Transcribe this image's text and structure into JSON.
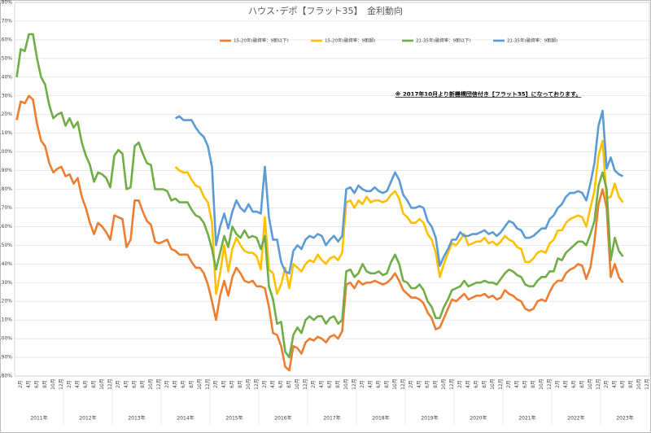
{
  "chart_data": {
    "type": "line",
    "title": "ハウス･デポ【フラット35】　金利動向",
    "annotation": "※ 2017年10月より新機構団信付き【フラット35】になっております。",
    "categories": [
      null,
      "2月",
      null,
      "4月",
      null,
      "6月",
      null,
      "8月",
      null,
      "10月",
      null,
      "12月",
      null,
      "2月",
      null,
      "4月",
      null,
      "6月",
      null,
      "8月",
      null,
      "10月",
      null,
      "12月",
      null,
      "2月",
      null,
      "4月",
      null,
      "6月",
      null,
      "8月",
      null,
      "10月",
      null,
      "12月",
      null,
      "2月",
      null,
      "4月",
      null,
      "6月",
      null,
      "8月",
      null,
      "10月",
      null,
      "12月",
      null,
      "2月",
      null,
      "4月",
      null,
      "6月",
      null,
      "8月",
      null,
      "10月",
      null,
      "12月",
      null,
      "2月",
      null,
      "4月",
      null,
      "6月",
      null,
      "8月",
      null,
      "10月",
      null,
      "12月",
      null,
      "2月",
      null,
      "4月",
      null,
      "6月",
      null,
      "8月",
      null,
      "10月",
      null,
      "12月",
      null,
      "2月",
      null,
      "4月",
      null,
      "6月",
      null,
      "8月",
      null,
      "10月",
      null,
      "12月",
      null,
      "2月",
      null,
      "4月",
      null,
      "6月",
      null,
      "8月",
      null,
      "10月",
      null,
      "12月",
      null,
      "2月",
      null,
      "4月",
      null,
      "6月",
      null,
      "8月",
      null,
      "10月",
      null,
      "12月",
      null,
      "2月",
      null,
      "4月",
      null,
      "6月",
      null,
      "8月",
      null,
      "10月",
      null,
      "12月",
      null,
      "2月",
      null,
      "4月",
      null,
      "6月",
      null,
      "8月",
      null,
      "10月",
      null,
      "12月",
      null,
      "2月",
      null,
      "4月",
      null,
      "6月",
      null,
      "8月",
      null,
      "10月",
      null,
      "12月"
    ],
    "x_groups": [
      "2011年",
      "2012年",
      "2013年",
      "2014年",
      "2015年",
      "2016年",
      "2017年",
      "2018年",
      "2019年",
      "2020年",
      "2021年",
      "2022年",
      "2023年"
    ],
    "ylim": [
      0.8,
      2.8
    ],
    "yticks": [
      {
        "value": 0.8,
        "label": "0.80%"
      },
      {
        "value": 0.9,
        "label": "0.90%"
      },
      {
        "value": 1.0,
        "label": "1.00%"
      },
      {
        "value": 1.1,
        "label": "1.10%"
      },
      {
        "value": 1.2,
        "label": "1.20%"
      },
      {
        "value": 1.3,
        "label": "1.30%"
      },
      {
        "value": 1.4,
        "label": "1.40%"
      },
      {
        "value": 1.5,
        "label": "1.50%"
      },
      {
        "value": 1.6,
        "label": "1.60%"
      },
      {
        "value": 1.7,
        "label": "1.70%"
      },
      {
        "value": 1.8,
        "label": "1.80%"
      },
      {
        "value": 1.9,
        "label": "1.90%"
      },
      {
        "value": 2.0,
        "label": "2.00%"
      },
      {
        "value": 2.1,
        "label": "2.10%"
      },
      {
        "value": 2.2,
        "label": "2.20%"
      },
      {
        "value": 2.3,
        "label": "2.30%"
      },
      {
        "value": 2.4,
        "label": "2.40%"
      },
      {
        "value": 2.5,
        "label": "2.50%"
      },
      {
        "value": 2.6,
        "label": "2.60%"
      },
      {
        "value": 2.7,
        "label": "2.70%"
      },
      {
        "value": 2.8,
        "label": "2.80%"
      }
    ],
    "grid": true,
    "series": [
      {
        "name": "15-20年(融資率：9割以下)",
        "color": "#ed7d31",
        "values": [
          2.17,
          2.27,
          2.26,
          2.3,
          2.28,
          2.15,
          2.06,
          2.03,
          1.94,
          1.89,
          1.91,
          1.92,
          1.87,
          1.88,
          1.83,
          1.86,
          1.76,
          1.7,
          1.62,
          1.56,
          1.62,
          1.6,
          1.57,
          1.53,
          1.66,
          1.65,
          1.64,
          1.49,
          1.53,
          1.74,
          1.74,
          1.68,
          1.63,
          1.61,
          1.52,
          1.51,
          1.52,
          1.53,
          1.48,
          1.47,
          1.45,
          1.45,
          1.45,
          1.41,
          1.38,
          1.38,
          1.35,
          1.29,
          1.2,
          1.1,
          1.23,
          1.31,
          1.23,
          1.33,
          1.38,
          1.35,
          1.31,
          1.3,
          1.31,
          1.28,
          1.28,
          1.27,
          1.17,
          1.03,
          1.02,
          0.96,
          0.85,
          0.83,
          0.96,
          0.95,
          0.92,
          0.98,
          1.0,
          0.99,
          1.01,
          1.0,
          0.98,
          1.01,
          1.02,
          1.0,
          1.04,
          1.29,
          1.3,
          1.27,
          1.31,
          1.29,
          1.3,
          1.3,
          1.31,
          1.3,
          1.29,
          1.3,
          1.32,
          1.35,
          1.31,
          1.26,
          1.24,
          1.22,
          1.22,
          1.21,
          1.19,
          1.14,
          1.11,
          1.05,
          1.06,
          1.11,
          1.16,
          1.21,
          1.2,
          1.22,
          1.24,
          1.21,
          1.22,
          1.23,
          1.23,
          1.24,
          1.22,
          1.23,
          1.21,
          1.22,
          1.26,
          1.24,
          1.23,
          1.21,
          1.2,
          1.16,
          1.15,
          1.16,
          1.2,
          1.21,
          1.2,
          1.25,
          1.29,
          1.31,
          1.31,
          1.35,
          1.37,
          1.38,
          1.4,
          1.39,
          1.32,
          1.38,
          1.52,
          1.72,
          1.8,
          1.7,
          1.33,
          1.4,
          1.33,
          1.3,
          null,
          null,
          null,
          null,
          null,
          null
        ]
      },
      {
        "name": "15-20年(融資率：9割超)",
        "color": "#ffc000",
        "values": [
          null,
          null,
          null,
          null,
          null,
          null,
          null,
          null,
          null,
          null,
          null,
          null,
          null,
          null,
          null,
          null,
          null,
          null,
          null,
          null,
          null,
          null,
          null,
          null,
          null,
          null,
          null,
          null,
          null,
          null,
          null,
          null,
          null,
          null,
          null,
          null,
          null,
          null,
          null,
          1.92,
          1.9,
          1.89,
          1.89,
          1.85,
          1.82,
          1.81,
          1.76,
          1.73,
          1.62,
          1.24,
          1.35,
          1.5,
          1.36,
          1.48,
          1.54,
          1.5,
          1.47,
          1.46,
          1.46,
          1.44,
          1.37,
          1.65,
          1.37,
          1.35,
          1.24,
          1.29,
          1.38,
          1.27,
          1.4,
          1.38,
          1.36,
          1.4,
          1.42,
          1.41,
          1.45,
          1.42,
          1.4,
          1.43,
          1.44,
          1.42,
          1.46,
          1.73,
          1.74,
          1.7,
          1.74,
          1.72,
          1.76,
          1.73,
          1.74,
          1.74,
          1.73,
          1.74,
          1.77,
          1.79,
          1.75,
          1.67,
          1.65,
          1.62,
          1.62,
          1.64,
          1.62,
          1.56,
          1.53,
          1.46,
          1.33,
          1.4,
          1.46,
          1.51,
          1.5,
          1.53,
          1.56,
          1.5,
          1.51,
          1.52,
          1.52,
          1.54,
          1.51,
          1.52,
          1.5,
          1.52,
          1.55,
          1.53,
          1.52,
          1.49,
          1.48,
          1.41,
          1.41,
          1.43,
          1.46,
          1.47,
          1.46,
          1.51,
          1.53,
          1.58,
          1.58,
          1.62,
          1.64,
          1.65,
          1.66,
          1.65,
          1.6,
          1.7,
          1.79,
          1.98,
          2.06,
          1.75,
          1.76,
          1.83,
          1.76,
          1.73,
          null,
          null,
          null,
          null,
          null,
          null
        ]
      },
      {
        "name": "21-35年(融資率：9割以下)",
        "color": "#70ad47",
        "values": [
          2.4,
          2.55,
          2.54,
          2.63,
          2.63,
          2.5,
          2.4,
          2.36,
          2.25,
          2.18,
          2.2,
          2.21,
          2.14,
          2.18,
          2.13,
          2.16,
          2.05,
          1.98,
          1.93,
          1.84,
          1.89,
          1.88,
          1.86,
          1.81,
          1.98,
          2.01,
          1.99,
          1.8,
          1.81,
          2.03,
          2.05,
          1.99,
          1.94,
          1.93,
          1.8,
          1.8,
          1.8,
          1.79,
          1.74,
          1.75,
          1.73,
          1.73,
          1.73,
          1.69,
          1.66,
          1.65,
          1.62,
          1.56,
          1.48,
          1.37,
          1.46,
          1.55,
          1.49,
          1.6,
          1.56,
          1.54,
          1.58,
          1.54,
          1.55,
          1.54,
          1.48,
          1.55,
          1.28,
          1.21,
          1.08,
          1.09,
          0.93,
          0.9,
          1.02,
          1.06,
          1.03,
          1.1,
          1.12,
          1.1,
          1.12,
          1.12,
          1.08,
          1.11,
          1.12,
          1.08,
          1.1,
          1.36,
          1.37,
          1.33,
          1.35,
          1.4,
          1.36,
          1.35,
          1.35,
          1.36,
          1.34,
          1.35,
          1.41,
          1.45,
          1.4,
          1.31,
          1.3,
          1.27,
          1.27,
          1.29,
          1.26,
          1.2,
          1.17,
          1.11,
          1.11,
          1.17,
          1.21,
          1.26,
          1.27,
          1.28,
          1.31,
          1.28,
          1.29,
          1.3,
          1.3,
          1.31,
          1.3,
          1.3,
          1.29,
          1.32,
          1.35,
          1.37,
          1.36,
          1.34,
          1.33,
          1.29,
          1.28,
          1.28,
          1.31,
          1.33,
          1.33,
          1.36,
          1.36,
          1.43,
          1.42,
          1.46,
          1.48,
          1.5,
          1.52,
          1.52,
          1.5,
          1.56,
          1.63,
          1.82,
          1.89,
          1.8,
          1.42,
          1.54,
          1.47,
          1.44,
          null,
          null,
          null,
          null,
          null,
          null
        ]
      },
      {
        "name": "21-35年(融資率：9割超)",
        "color": "#5b9bd5",
        "values": [
          null,
          null,
          null,
          null,
          null,
          null,
          null,
          null,
          null,
          null,
          null,
          null,
          null,
          null,
          null,
          null,
          null,
          null,
          null,
          null,
          null,
          null,
          null,
          null,
          null,
          null,
          null,
          null,
          null,
          null,
          null,
          null,
          null,
          null,
          null,
          null,
          null,
          null,
          null,
          2.18,
          2.19,
          2.17,
          2.17,
          2.17,
          2.13,
          2.1,
          2.08,
          2.03,
          1.92,
          1.5,
          1.6,
          1.67,
          1.59,
          1.68,
          1.74,
          1.7,
          1.68,
          1.72,
          1.68,
          1.68,
          1.67,
          1.92,
          1.65,
          1.53,
          1.53,
          1.41,
          1.36,
          1.35,
          1.47,
          1.5,
          1.48,
          1.53,
          1.55,
          1.54,
          1.56,
          1.55,
          1.5,
          1.53,
          1.55,
          1.52,
          1.55,
          1.8,
          1.81,
          1.78,
          1.82,
          1.8,
          1.79,
          1.79,
          1.81,
          1.79,
          1.78,
          1.79,
          1.84,
          1.89,
          1.85,
          1.77,
          1.74,
          1.7,
          1.7,
          1.71,
          1.7,
          1.63,
          1.6,
          1.54,
          1.39,
          1.44,
          1.48,
          1.53,
          1.53,
          1.57,
          1.55,
          1.55,
          1.56,
          1.56,
          1.57,
          1.58,
          1.56,
          1.57,
          1.55,
          1.57,
          1.6,
          1.63,
          1.62,
          1.59,
          1.58,
          1.54,
          1.54,
          1.55,
          1.57,
          1.59,
          1.59,
          1.64,
          1.66,
          1.7,
          1.72,
          1.76,
          1.78,
          1.78,
          1.79,
          1.78,
          1.74,
          1.83,
          1.94,
          2.14,
          2.22,
          1.91,
          1.97,
          1.9,
          1.88,
          1.87,
          null,
          null,
          null,
          null,
          null,
          null
        ]
      }
    ]
  }
}
